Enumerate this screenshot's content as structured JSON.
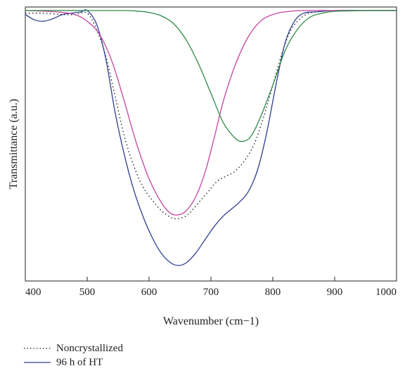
{
  "chart_data": {
    "type": "line",
    "xlabel": "Wavenumber (cm−1)",
    "ylabel": "Transmittance (a.u.)",
    "xlim": [
      400,
      1000
    ],
    "xticks": [
      "400",
      "500",
      "600",
      "700",
      "800",
      "900",
      "1000"
    ],
    "y_ticks_labeled": false,
    "grid": false,
    "series": [
      {
        "name": "Noncrystallized",
        "style": "dotted",
        "color": "#222222",
        "x": [
          400,
          430,
          460,
          480,
          500,
          515,
          530,
          545,
          560,
          575,
          590,
          605,
          620,
          635,
          645,
          655,
          665,
          680,
          695,
          710,
          725,
          740,
          755,
          770,
          785,
          800,
          815,
          830,
          850,
          870,
          900,
          950,
          1000
        ],
        "y": [
          0.99,
          0.99,
          0.985,
          0.985,
          0.99,
          0.93,
          0.83,
          0.68,
          0.53,
          0.42,
          0.34,
          0.29,
          0.25,
          0.225,
          0.22,
          0.225,
          0.24,
          0.28,
          0.32,
          0.36,
          0.38,
          0.4,
          0.44,
          0.5,
          0.6,
          0.72,
          0.84,
          0.93,
          0.98,
          0.995,
          1.0,
          1.0,
          1.0
        ]
      },
      {
        "name": "96 h of HT",
        "style": "solid",
        "color": "#2e3f8f",
        "x": [
          400,
          415,
          430,
          445,
          460,
          475,
          490,
          500,
          515,
          530,
          545,
          560,
          575,
          590,
          605,
          620,
          635,
          648,
          660,
          675,
          690,
          705,
          720,
          735,
          745,
          760,
          775,
          790,
          805,
          820,
          835,
          850,
          870,
          900,
          950,
          1000
        ],
        "y": [
          0.985,
          0.965,
          0.96,
          0.97,
          0.985,
          0.99,
          0.995,
          1.0,
          0.95,
          0.82,
          0.62,
          0.46,
          0.33,
          0.23,
          0.15,
          0.09,
          0.055,
          0.045,
          0.055,
          0.09,
          0.14,
          0.19,
          0.23,
          0.26,
          0.28,
          0.32,
          0.4,
          0.54,
          0.72,
          0.88,
          0.96,
          0.99,
          0.995,
          1.0,
          1.0,
          1.0
        ]
      },
      {
        "style": "solid",
        "color": "#c2459e",
        "x": [
          400,
          450,
          480,
          500,
          520,
          540,
          560,
          580,
          600,
          620,
          635,
          648,
          660,
          675,
          690,
          705,
          720,
          740,
          760,
          780,
          800,
          820,
          850,
          900,
          1000
        ],
        "y": [
          1.0,
          0.995,
          0.985,
          0.96,
          0.91,
          0.81,
          0.66,
          0.5,
          0.37,
          0.28,
          0.24,
          0.235,
          0.25,
          0.3,
          0.39,
          0.52,
          0.66,
          0.8,
          0.9,
          0.96,
          0.985,
          0.995,
          1.0,
          1.0,
          1.0
        ]
      },
      {
        "style": "solid",
        "color": "#2e8a46",
        "x": [
          400,
          550,
          580,
          600,
          620,
          640,
          660,
          680,
          700,
          720,
          740,
          752,
          765,
          780,
          800,
          820,
          840,
          860,
          880,
          900,
          950,
          1000
        ],
        "y": [
          1.0,
          1.0,
          0.998,
          0.993,
          0.98,
          0.95,
          0.89,
          0.8,
          0.69,
          0.58,
          0.52,
          0.51,
          0.53,
          0.6,
          0.72,
          0.85,
          0.93,
          0.975,
          0.99,
          0.997,
          1.0,
          1.0
        ]
      }
    ]
  }
}
